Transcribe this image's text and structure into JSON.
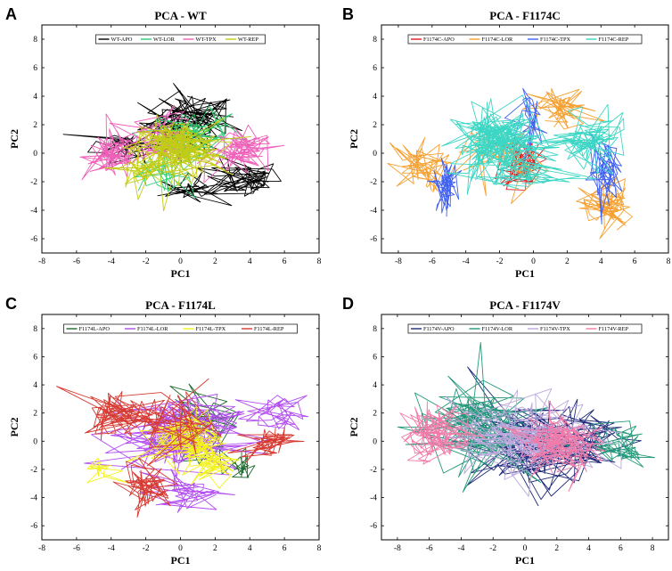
{
  "chart_data": [
    {
      "type": "scatter",
      "panel_label": "A",
      "title": "PCA - WT",
      "xlabel": "PC1",
      "ylabel": "PC2",
      "xlim": [
        -8,
        8
      ],
      "ylim": [
        -7,
        9
      ],
      "xticks": [
        "-8",
        "-6",
        "-4",
        "-2",
        "0",
        "2",
        "4",
        "6",
        "8"
      ],
      "yticks": [
        "-6",
        "-4",
        "-2",
        "0",
        "2",
        "4",
        "6",
        "8"
      ],
      "legend": "top",
      "series": [
        {
          "name": "WT-APO",
          "color": "#000000",
          "clusters": [
            {
              "x": 0.5,
              "y": 2.2,
              "sx": 1.6,
              "sy": 1.2,
              "n": 90
            },
            {
              "x": 3.6,
              "y": -1.8,
              "sx": 1.3,
              "sy": 0.8,
              "n": 60
            },
            {
              "x": -3.0,
              "y": 0.6,
              "sx": 1.2,
              "sy": 0.7,
              "n": 40
            },
            {
              "x": 0.5,
              "y": -2.6,
              "sx": 1.0,
              "sy": 0.6,
              "n": 30
            }
          ]
        },
        {
          "name": "WT-LOR",
          "color": "#2ecc71",
          "clusters": [
            {
              "x": 0.6,
              "y": 1.2,
              "sx": 1.3,
              "sy": 1.0,
              "n": 70
            },
            {
              "x": -1.2,
              "y": -1.5,
              "sx": 1.0,
              "sy": 0.7,
              "n": 30
            }
          ]
        },
        {
          "name": "WT-TPX",
          "color": "#ee5fb8",
          "clusters": [
            {
              "x": -3.9,
              "y": -0.2,
              "sx": 1.0,
              "sy": 1.0,
              "n": 70
            },
            {
              "x": 3.6,
              "y": 0.0,
              "sx": 1.1,
              "sy": 0.9,
              "n": 70
            },
            {
              "x": -1.0,
              "y": 1.2,
              "sx": 1.2,
              "sy": 1.0,
              "n": 40
            }
          ]
        },
        {
          "name": "WT-REP",
          "color": "#c3cc14",
          "clusters": [
            {
              "x": -0.2,
              "y": 0.3,
              "sx": 1.5,
              "sy": 1.2,
              "n": 150
            },
            {
              "x": -2.3,
              "y": -1.2,
              "sx": 0.8,
              "sy": 0.8,
              "n": 40
            }
          ]
        }
      ]
    },
    {
      "type": "scatter",
      "panel_label": "B",
      "title": "PCA - F1174C",
      "xlabel": "PC1",
      "ylabel": "PC2",
      "xlim": [
        -9,
        8
      ],
      "ylim": [
        -7,
        9
      ],
      "xticks": [
        "-8",
        "-6",
        "-4",
        "-2",
        "0",
        "2",
        "4",
        "6",
        "8"
      ],
      "yticks": [
        "-6",
        "-4",
        "-2",
        "0",
        "2",
        "4",
        "6",
        "8"
      ],
      "legend": "top",
      "series": [
        {
          "name": "F1174C-APO",
          "color": "#e41a1c",
          "clusters": [
            {
              "x": -0.7,
              "y": -0.5,
              "sx": 0.7,
              "sy": 1.2,
              "n": 60
            }
          ]
        },
        {
          "name": "F1174C-LOR",
          "color": "#f5a030",
          "clusters": [
            {
              "x": -7.0,
              "y": -1.0,
              "sx": 1.0,
              "sy": 1.0,
              "n": 50
            },
            {
              "x": 4.3,
              "y": -3.8,
              "sx": 0.9,
              "sy": 1.1,
              "n": 60
            },
            {
              "x": 1.8,
              "y": 3.0,
              "sx": 1.2,
              "sy": 0.9,
              "n": 50
            },
            {
              "x": -2.0,
              "y": 0.0,
              "sx": 1.5,
              "sy": 1.5,
              "n": 30
            }
          ]
        },
        {
          "name": "F1174C-TPX",
          "color": "#4060f0",
          "clusters": [
            {
              "x": -5.2,
              "y": -2.3,
              "sx": 0.4,
              "sy": 1.0,
              "n": 50
            },
            {
              "x": 4.3,
              "y": -1.3,
              "sx": 0.6,
              "sy": 1.3,
              "n": 60
            },
            {
              "x": 0.0,
              "y": 2.3,
              "sx": 0.5,
              "sy": 1.2,
              "n": 30
            }
          ]
        },
        {
          "name": "F1174C-REP",
          "color": "#3cd6c4",
          "clusters": [
            {
              "x": -2.2,
              "y": 0.8,
              "sx": 1.5,
              "sy": 1.4,
              "n": 160
            },
            {
              "x": 3.4,
              "y": 0.8,
              "sx": 1.3,
              "sy": 1.0,
              "n": 80
            },
            {
              "x": -0.3,
              "y": -1.5,
              "sx": 1.5,
              "sy": 0.8,
              "n": 40
            }
          ]
        }
      ]
    },
    {
      "type": "scatter",
      "panel_label": "C",
      "title": "PCA - F1174L",
      "xlabel": "PC1",
      "ylabel": "PC2",
      "xlim": [
        -8,
        8
      ],
      "ylim": [
        -7,
        9
      ],
      "xticks": [
        "-8",
        "-6",
        "-4",
        "-2",
        "0",
        "2",
        "4",
        "6",
        "8"
      ],
      "yticks": [
        "-6",
        "-4",
        "-2",
        "0",
        "2",
        "4",
        "6",
        "8"
      ],
      "legend": "top",
      "series": [
        {
          "name": "F1174L-APO",
          "color": "#1d6b2d",
          "clusters": [
            {
              "x": 1.0,
              "y": 1.0,
              "sx": 1.2,
              "sy": 1.3,
              "n": 40
            },
            {
              "x": 3.6,
              "y": -1.5,
              "sx": 0.5,
              "sy": 0.8,
              "n": 25
            }
          ]
        },
        {
          "name": "F1174L-LOR",
          "color": "#b24cf0",
          "clusters": [
            {
              "x": -0.5,
              "y": 0.5,
              "sx": 2.2,
              "sy": 1.5,
              "n": 130
            },
            {
              "x": 5.5,
              "y": 1.8,
              "sx": 1.0,
              "sy": 0.8,
              "n": 40
            },
            {
              "x": 0.5,
              "y": -3.5,
              "sx": 1.3,
              "sy": 0.8,
              "n": 40
            }
          ]
        },
        {
          "name": "F1174L-TPX",
          "color": "#f2f21a",
          "clusters": [
            {
              "x": 0.5,
              "y": 0.2,
              "sx": 1.2,
              "sy": 1.2,
              "n": 90
            },
            {
              "x": 2.0,
              "y": -1.5,
              "sx": 0.9,
              "sy": 0.8,
              "n": 50
            },
            {
              "x": -4.5,
              "y": -2.0,
              "sx": 0.6,
              "sy": 0.5,
              "n": 20
            }
          ]
        },
        {
          "name": "F1174L-REP",
          "color": "#d63a32",
          "clusters": [
            {
              "x": -3.5,
              "y": 2.0,
              "sx": 1.2,
              "sy": 1.0,
              "n": 70
            },
            {
              "x": -2.0,
              "y": -3.2,
              "sx": 0.9,
              "sy": 0.9,
              "n": 60
            },
            {
              "x": 5.0,
              "y": 0.0,
              "sx": 0.9,
              "sy": 0.7,
              "n": 50
            },
            {
              "x": -0.5,
              "y": 1.5,
              "sx": 1.5,
              "sy": 1.2,
              "n": 40
            }
          ]
        }
      ]
    },
    {
      "type": "scatter",
      "panel_label": "D",
      "title": "PCA - F1174V",
      "xlabel": "PC1",
      "ylabel": "PC2",
      "xlim": [
        -9,
        9
      ],
      "ylim": [
        -7,
        9
      ],
      "xticks": [
        "-8",
        "-6",
        "-4",
        "-2",
        "0",
        "2",
        "4",
        "6",
        "8"
      ],
      "yticks": [
        "-6",
        "-4",
        "-2",
        "0",
        "2",
        "4",
        "6",
        "8"
      ],
      "legend": "top",
      "series": [
        {
          "name": "F1174V-APO",
          "color": "#1f2a7a",
          "clusters": [
            {
              "x": 0.5,
              "y": -0.5,
              "sx": 2.3,
              "sy": 1.8,
              "n": 110
            },
            {
              "x": 4.0,
              "y": 0.5,
              "sx": 1.3,
              "sy": 1.2,
              "n": 50
            }
          ]
        },
        {
          "name": "F1174V-LOR",
          "color": "#22997a",
          "clusters": [
            {
              "x": -3.5,
              "y": 1.2,
              "sx": 2.2,
              "sy": 1.8,
              "n": 120
            },
            {
              "x": 6.0,
              "y": -0.5,
              "sx": 1.0,
              "sy": 0.9,
              "n": 50
            }
          ]
        },
        {
          "name": "F1174V-TPX",
          "color": "#bba8dc",
          "clusters": [
            {
              "x": 0.0,
              "y": 0.5,
              "sx": 2.8,
              "sy": 1.6,
              "n": 110
            }
          ]
        },
        {
          "name": "F1174V-REP",
          "color": "#f27aa8",
          "clusters": [
            {
              "x": -5.5,
              "y": 0.5,
              "sx": 1.3,
              "sy": 1.2,
              "n": 90
            },
            {
              "x": 2.0,
              "y": 0.0,
              "sx": 1.3,
              "sy": 1.3,
              "n": 100
            }
          ]
        }
      ]
    }
  ]
}
